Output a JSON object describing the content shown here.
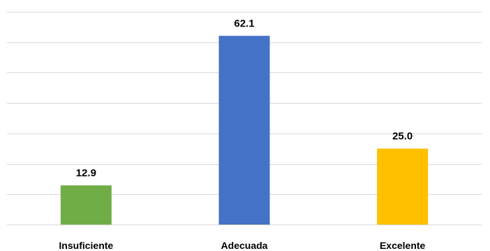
{
  "chart_data": {
    "type": "bar",
    "categories": [
      "Insuficiente",
      "Adecuada",
      "Excelente"
    ],
    "values": [
      12.9,
      62.1,
      25.0
    ],
    "value_labels": [
      "12.9",
      "62.1",
      "25.0"
    ],
    "colors": [
      "#70ad47",
      "#4472c4",
      "#ffc000"
    ],
    "ylim": [
      0,
      70
    ],
    "gridline_step": 10,
    "grid": true,
    "legend": "none"
  }
}
